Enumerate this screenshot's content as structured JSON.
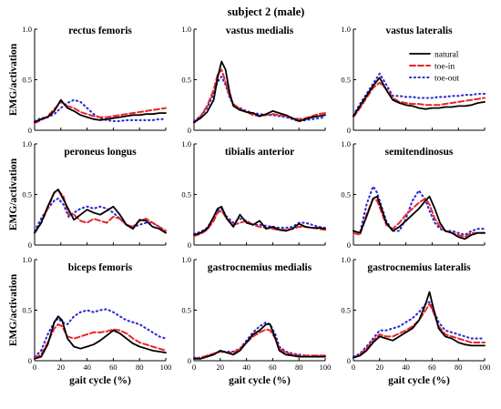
{
  "figure_title": "subject 2 (male)",
  "ylabel": "EMG/activation",
  "xlabel": "gait cycle (%)",
  "legend": [
    {
      "label": "natural",
      "color": "#000000",
      "style": "solid"
    },
    {
      "label": "toe-in",
      "color": "#e8262a",
      "style": "dashed"
    },
    {
      "label": "toe-out",
      "color": "#2b2bd6",
      "style": "dotted"
    }
  ],
  "legend_panel": "vastus lateralis",
  "chart_data": [
    {
      "type": "line",
      "title": "rectus femoris",
      "x": [
        0,
        5,
        10,
        15,
        20,
        25,
        30,
        35,
        40,
        45,
        50,
        55,
        60,
        65,
        70,
        75,
        80,
        85,
        90,
        95,
        100
      ],
      "xlim": [
        0,
        100
      ],
      "ylim": [
        0,
        1
      ],
      "yticks": [
        "0",
        "0.5",
        "1.0"
      ],
      "xticks": [
        "0",
        "20",
        "40",
        "60",
        "80",
        "100"
      ],
      "series": [
        {
          "name": "natural",
          "values": [
            0.08,
            0.11,
            0.13,
            0.19,
            0.3,
            0.22,
            0.19,
            0.15,
            0.13,
            0.11,
            0.1,
            0.11,
            0.12,
            0.13,
            0.14,
            0.15,
            0.15,
            0.16,
            0.16,
            0.17,
            0.17
          ]
        },
        {
          "name": "toe-in",
          "values": [
            0.07,
            0.1,
            0.14,
            0.21,
            0.28,
            0.24,
            0.22,
            0.18,
            0.16,
            0.14,
            0.13,
            0.13,
            0.14,
            0.15,
            0.16,
            0.17,
            0.18,
            0.19,
            0.2,
            0.21,
            0.22
          ]
        },
        {
          "name": "toe-out",
          "values": [
            0.09,
            0.12,
            0.13,
            0.16,
            0.22,
            0.27,
            0.3,
            0.28,
            0.22,
            0.16,
            0.12,
            0.1,
            0.09,
            0.09,
            0.1,
            0.1,
            0.1,
            0.1,
            0.1,
            0.11,
            0.11
          ]
        }
      ]
    },
    {
      "type": "line",
      "title": "vastus medialis",
      "x": [
        0,
        5,
        10,
        15,
        18,
        21,
        24,
        27,
        30,
        35,
        40,
        45,
        50,
        55,
        60,
        65,
        70,
        75,
        80,
        85,
        90,
        95,
        100
      ],
      "xlim": [
        0,
        100
      ],
      "ylim": [
        0,
        1
      ],
      "yticks": [
        "0",
        "0.5",
        "1.0"
      ],
      "xticks": [
        "0",
        "20",
        "40",
        "60",
        "80",
        "100"
      ],
      "series": [
        {
          "name": "natural",
          "values": [
            0.08,
            0.12,
            0.18,
            0.3,
            0.52,
            0.68,
            0.6,
            0.38,
            0.24,
            0.2,
            0.18,
            0.17,
            0.14,
            0.16,
            0.19,
            0.17,
            0.15,
            0.12,
            0.09,
            0.11,
            0.13,
            0.14,
            0.15
          ]
        },
        {
          "name": "toe-in",
          "values": [
            0.07,
            0.14,
            0.24,
            0.4,
            0.55,
            0.6,
            0.48,
            0.34,
            0.26,
            0.21,
            0.18,
            0.15,
            0.14,
            0.15,
            0.16,
            0.15,
            0.14,
            0.12,
            0.11,
            0.12,
            0.14,
            0.16,
            0.17
          ]
        },
        {
          "name": "toe-out",
          "values": [
            0.09,
            0.14,
            0.22,
            0.36,
            0.48,
            0.53,
            0.45,
            0.33,
            0.25,
            0.22,
            0.19,
            0.17,
            0.16,
            0.15,
            0.15,
            0.14,
            0.13,
            0.11,
            0.09,
            0.1,
            0.11,
            0.12,
            0.13
          ]
        }
      ]
    },
    {
      "type": "line",
      "title": "vastus lateralis",
      "x": [
        0,
        5,
        10,
        15,
        20,
        25,
        30,
        35,
        40,
        45,
        50,
        55,
        60,
        65,
        70,
        75,
        80,
        85,
        90,
        95,
        100
      ],
      "xlim": [
        0,
        100
      ],
      "ylim": [
        0,
        1
      ],
      "yticks": [
        "0",
        "0.5",
        "1.0"
      ],
      "xticks": [
        "0",
        "20",
        "40",
        "60",
        "80",
        "100"
      ],
      "series": [
        {
          "name": "natural",
          "values": [
            0.14,
            0.24,
            0.34,
            0.44,
            0.52,
            0.4,
            0.3,
            0.27,
            0.25,
            0.24,
            0.22,
            0.21,
            0.22,
            0.22,
            0.23,
            0.23,
            0.24,
            0.24,
            0.25,
            0.27,
            0.28
          ]
        },
        {
          "name": "toe-in",
          "values": [
            0.13,
            0.22,
            0.32,
            0.42,
            0.47,
            0.41,
            0.32,
            0.28,
            0.27,
            0.26,
            0.26,
            0.25,
            0.25,
            0.25,
            0.26,
            0.27,
            0.28,
            0.29,
            0.3,
            0.31,
            0.32
          ]
        },
        {
          "name": "toe-out",
          "values": [
            0.15,
            0.26,
            0.36,
            0.46,
            0.56,
            0.45,
            0.34,
            0.34,
            0.33,
            0.33,
            0.32,
            0.32,
            0.32,
            0.33,
            0.33,
            0.34,
            0.34,
            0.35,
            0.35,
            0.36,
            0.36
          ]
        }
      ]
    },
    {
      "type": "line",
      "title": "peroneus longus",
      "x": [
        0,
        5,
        10,
        15,
        18,
        22,
        26,
        30,
        35,
        40,
        45,
        50,
        55,
        60,
        65,
        70,
        75,
        80,
        85,
        90,
        95,
        100
      ],
      "xlim": [
        0,
        100
      ],
      "ylim": [
        0,
        1
      ],
      "yticks": [
        "0",
        "0.5",
        "1.0"
      ],
      "xticks": [
        "0",
        "20",
        "40",
        "60",
        "80",
        "100"
      ],
      "series": [
        {
          "name": "natural",
          "values": [
            0.12,
            0.22,
            0.38,
            0.52,
            0.55,
            0.45,
            0.35,
            0.25,
            0.3,
            0.35,
            0.32,
            0.3,
            0.34,
            0.38,
            0.3,
            0.2,
            0.16,
            0.25,
            0.24,
            0.18,
            0.16,
            0.12
          ]
        },
        {
          "name": "toe-in",
          "values": [
            0.12,
            0.22,
            0.36,
            0.52,
            0.54,
            0.48,
            0.3,
            0.3,
            0.24,
            0.22,
            0.26,
            0.24,
            0.22,
            0.28,
            0.26,
            0.2,
            0.18,
            0.24,
            0.26,
            0.22,
            0.18,
            0.14
          ]
        },
        {
          "name": "toe-out",
          "values": [
            0.14,
            0.26,
            0.36,
            0.44,
            0.46,
            0.4,
            0.28,
            0.32,
            0.36,
            0.38,
            0.36,
            0.38,
            0.36,
            0.32,
            0.26,
            0.2,
            0.18,
            0.2,
            0.22,
            0.22,
            0.18,
            0.14
          ]
        }
      ]
    },
    {
      "type": "line",
      "title": "tibialis anterior",
      "x": [
        0,
        5,
        10,
        15,
        18,
        21,
        25,
        30,
        35,
        40,
        45,
        50,
        55,
        60,
        65,
        70,
        75,
        80,
        85,
        90,
        95,
        100
      ],
      "xlim": [
        0,
        100
      ],
      "ylim": [
        0,
        1
      ],
      "yticks": [
        "0",
        "0.5",
        "1.0"
      ],
      "xticks": [
        "0",
        "20",
        "40",
        "60",
        "80",
        "100"
      ],
      "series": [
        {
          "name": "natural",
          "values": [
            0.1,
            0.12,
            0.16,
            0.28,
            0.36,
            0.38,
            0.26,
            0.18,
            0.3,
            0.22,
            0.2,
            0.24,
            0.16,
            0.18,
            0.15,
            0.14,
            0.16,
            0.21,
            0.18,
            0.17,
            0.17,
            0.16
          ]
        },
        {
          "name": "toe-in",
          "values": [
            0.09,
            0.11,
            0.15,
            0.24,
            0.32,
            0.34,
            0.26,
            0.2,
            0.22,
            0.24,
            0.2,
            0.18,
            0.17,
            0.16,
            0.15,
            0.15,
            0.16,
            0.18,
            0.18,
            0.17,
            0.16,
            0.15
          ]
        },
        {
          "name": "toe-out",
          "values": [
            0.11,
            0.13,
            0.17,
            0.26,
            0.34,
            0.36,
            0.28,
            0.22,
            0.26,
            0.24,
            0.2,
            0.2,
            0.19,
            0.18,
            0.17,
            0.17,
            0.18,
            0.22,
            0.22,
            0.2,
            0.18,
            0.17
          ]
        }
      ]
    },
    {
      "type": "line",
      "title": "semitendinosus",
      "x": [
        0,
        5,
        10,
        15,
        18,
        21,
        25,
        30,
        35,
        40,
        45,
        50,
        55,
        58,
        62,
        66,
        70,
        75,
        80,
        85,
        90,
        95,
        100
      ],
      "xlim": [
        0,
        100
      ],
      "ylim": [
        0,
        1
      ],
      "yticks": [
        "0",
        "0.5",
        "1.0"
      ],
      "xticks": [
        "0",
        "20",
        "40",
        "60",
        "80",
        "100"
      ],
      "series": [
        {
          "name": "natural",
          "values": [
            0.14,
            0.12,
            0.28,
            0.46,
            0.48,
            0.38,
            0.22,
            0.14,
            0.18,
            0.24,
            0.3,
            0.36,
            0.44,
            0.48,
            0.36,
            0.22,
            0.14,
            0.12,
            0.08,
            0.06,
            0.1,
            0.12,
            0.12
          ]
        },
        {
          "name": "toe-in",
          "values": [
            0.12,
            0.1,
            0.3,
            0.46,
            0.44,
            0.34,
            0.2,
            0.16,
            0.22,
            0.3,
            0.36,
            0.42,
            0.46,
            0.4,
            0.26,
            0.18,
            0.14,
            0.12,
            0.1,
            0.08,
            0.12,
            0.12,
            0.12
          ]
        },
        {
          "name": "toe-out",
          "values": [
            0.14,
            0.12,
            0.4,
            0.58,
            0.52,
            0.4,
            0.24,
            0.14,
            0.14,
            0.26,
            0.44,
            0.54,
            0.44,
            0.34,
            0.22,
            0.16,
            0.14,
            0.14,
            0.12,
            0.1,
            0.14,
            0.16,
            0.16
          ]
        }
      ]
    },
    {
      "type": "line",
      "title": "biceps femoris",
      "x": [
        0,
        5,
        10,
        15,
        18,
        21,
        25,
        30,
        35,
        40,
        45,
        50,
        55,
        60,
        65,
        70,
        75,
        80,
        85,
        90,
        95,
        100
      ],
      "xlim": [
        0,
        100
      ],
      "ylim": [
        0,
        1
      ],
      "yticks": [
        "0",
        "0.5",
        "1.0"
      ],
      "xticks": [
        "0",
        "20",
        "40",
        "60",
        "80",
        "100"
      ],
      "series": [
        {
          "name": "natural",
          "values": [
            0.02,
            0.04,
            0.16,
            0.38,
            0.44,
            0.4,
            0.22,
            0.14,
            0.12,
            0.14,
            0.16,
            0.2,
            0.25,
            0.3,
            0.27,
            0.22,
            0.17,
            0.14,
            0.12,
            0.1,
            0.09,
            0.08
          ]
        },
        {
          "name": "toe-in",
          "values": [
            0.03,
            0.06,
            0.18,
            0.32,
            0.36,
            0.34,
            0.24,
            0.22,
            0.24,
            0.26,
            0.28,
            0.28,
            0.29,
            0.31,
            0.3,
            0.27,
            0.22,
            0.18,
            0.16,
            0.14,
            0.12,
            0.1
          ]
        },
        {
          "name": "toe-out",
          "values": [
            0.04,
            0.1,
            0.26,
            0.38,
            0.42,
            0.38,
            0.36,
            0.44,
            0.48,
            0.5,
            0.48,
            0.5,
            0.51,
            0.48,
            0.44,
            0.4,
            0.38,
            0.36,
            0.32,
            0.28,
            0.24,
            0.22
          ]
        }
      ]
    },
    {
      "type": "line",
      "title": "gastrocnemius medialis",
      "x": [
        0,
        5,
        10,
        15,
        20,
        25,
        30,
        35,
        40,
        45,
        50,
        55,
        58,
        62,
        65,
        70,
        75,
        80,
        85,
        90,
        95,
        100
      ],
      "xlim": [
        0,
        100
      ],
      "ylim": [
        0,
        1
      ],
      "yticks": [
        "0",
        "0.5",
        "1.0"
      ],
      "xticks": [
        "0",
        "20",
        "40",
        "60",
        "80",
        "100"
      ],
      "series": [
        {
          "name": "natural",
          "values": [
            0.02,
            0.02,
            0.04,
            0.06,
            0.1,
            0.08,
            0.06,
            0.1,
            0.18,
            0.26,
            0.3,
            0.36,
            0.36,
            0.22,
            0.1,
            0.06,
            0.05,
            0.04,
            0.04,
            0.04,
            0.04,
            0.04
          ]
        },
        {
          "name": "toe-in",
          "values": [
            0.02,
            0.03,
            0.05,
            0.07,
            0.09,
            0.08,
            0.08,
            0.12,
            0.18,
            0.24,
            0.28,
            0.31,
            0.3,
            0.22,
            0.12,
            0.08,
            0.06,
            0.05,
            0.05,
            0.05,
            0.05,
            0.05
          ]
        },
        {
          "name": "toe-out",
          "values": [
            0.03,
            0.03,
            0.05,
            0.07,
            0.09,
            0.09,
            0.09,
            0.12,
            0.2,
            0.28,
            0.34,
            0.38,
            0.36,
            0.26,
            0.14,
            0.09,
            0.07,
            0.06,
            0.05,
            0.05,
            0.05,
            0.05
          ]
        }
      ]
    },
    {
      "type": "line",
      "title": "gastrocnemius lateralis",
      "x": [
        0,
        5,
        10,
        15,
        20,
        25,
        30,
        35,
        40,
        45,
        50,
        55,
        58,
        61,
        65,
        70,
        75,
        80,
        85,
        90,
        95,
        100
      ],
      "xlim": [
        0,
        100
      ],
      "ylim": [
        0,
        1
      ],
      "yticks": [
        "0",
        "0.5",
        "1.0"
      ],
      "xticks": [
        "0",
        "20",
        "40",
        "60",
        "80",
        "100"
      ],
      "series": [
        {
          "name": "natural",
          "values": [
            0.03,
            0.05,
            0.1,
            0.18,
            0.24,
            0.22,
            0.2,
            0.24,
            0.28,
            0.32,
            0.4,
            0.56,
            0.68,
            0.52,
            0.32,
            0.24,
            0.22,
            0.18,
            0.16,
            0.15,
            0.15,
            0.15
          ]
        },
        {
          "name": "toe-in",
          "values": [
            0.03,
            0.06,
            0.12,
            0.2,
            0.26,
            0.24,
            0.24,
            0.27,
            0.3,
            0.34,
            0.4,
            0.5,
            0.56,
            0.48,
            0.34,
            0.26,
            0.24,
            0.22,
            0.2,
            0.18,
            0.18,
            0.18
          ]
        },
        {
          "name": "toe-out",
          "values": [
            0.04,
            0.07,
            0.14,
            0.22,
            0.3,
            0.3,
            0.32,
            0.34,
            0.38,
            0.42,
            0.48,
            0.56,
            0.58,
            0.5,
            0.38,
            0.3,
            0.28,
            0.26,
            0.24,
            0.22,
            0.22,
            0.22
          ]
        }
      ]
    }
  ]
}
